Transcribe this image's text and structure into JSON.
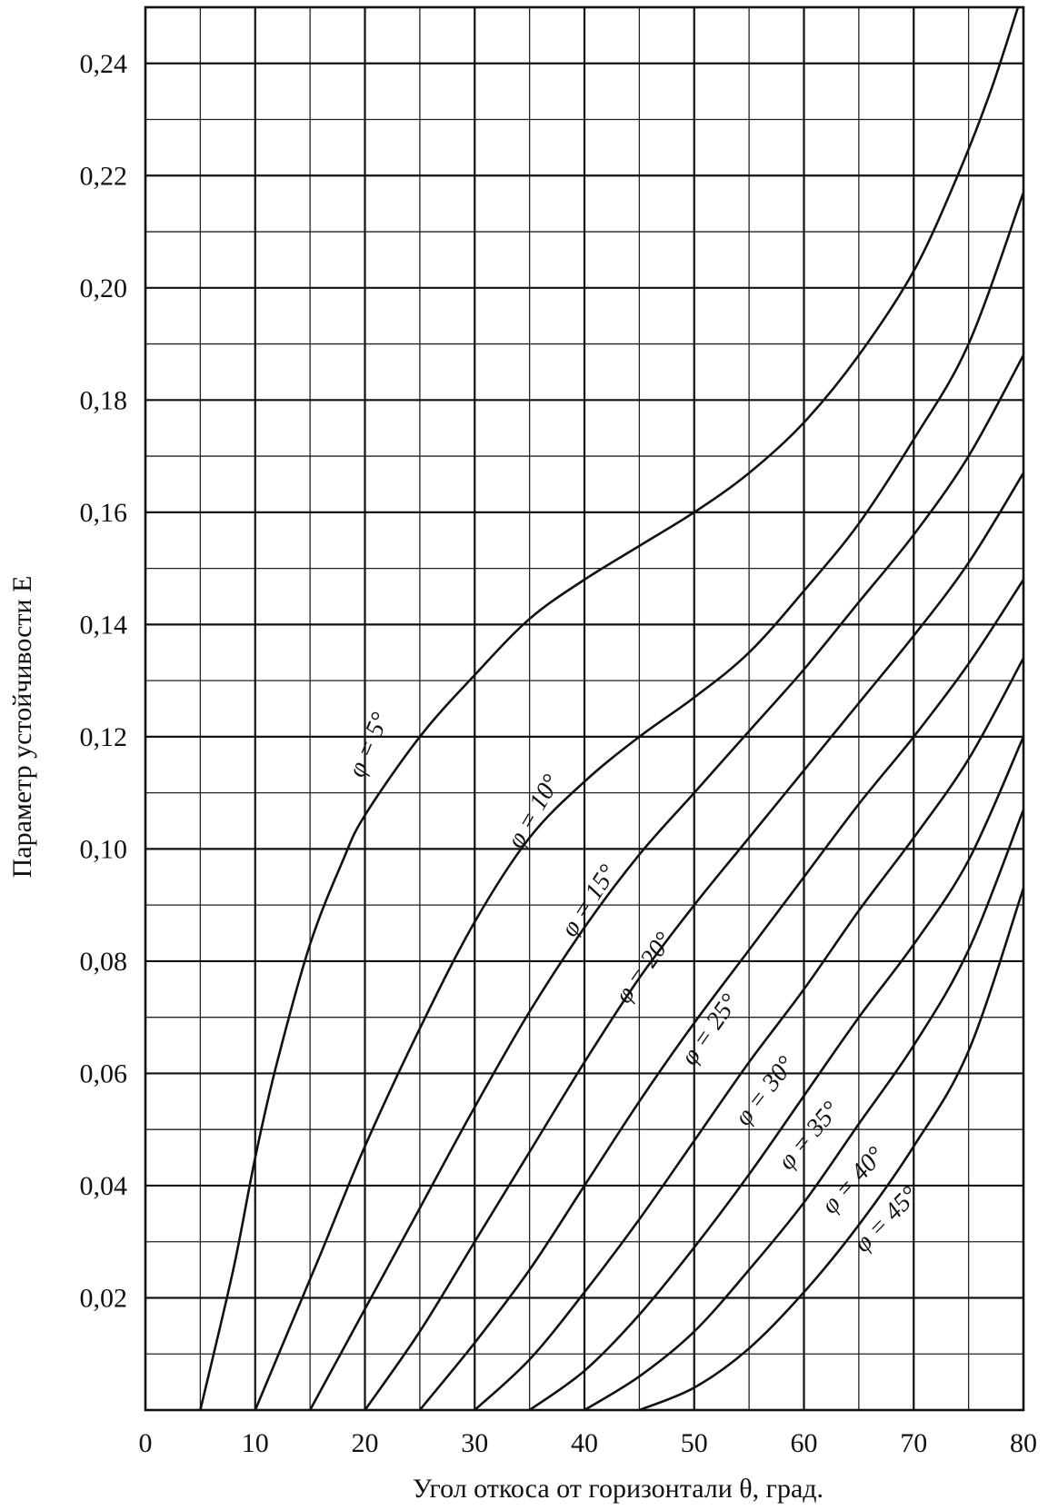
{
  "chart_data": {
    "type": "line",
    "title": "",
    "xlabel": "Угол откоса от горизонтали θ, град.",
    "ylabel": "Параметр устойчивости E",
    "xlim": [
      0,
      80
    ],
    "ylim": [
      0,
      0.25
    ],
    "x_ticks": [
      0,
      10,
      20,
      30,
      40,
      50,
      60,
      70,
      80
    ],
    "x_tick_labels": [
      "0",
      "10",
      "20",
      "30",
      "40",
      "50",
      "60",
      "70",
      "80"
    ],
    "y_ticks": [
      0.02,
      0.04,
      0.06,
      0.08,
      0.1,
      0.12,
      0.14,
      0.16,
      0.18,
      0.2,
      0.22,
      0.24
    ],
    "y_tick_labels": [
      "0,02",
      "0,04",
      "0,06",
      "0,08",
      "0,10",
      "0,12",
      "0,14",
      "0,16",
      "0,18",
      "0,20",
      "0,22",
      "0,24"
    ],
    "grid": true,
    "grid_x_step": 5,
    "grid_y_step": 0.01,
    "series": [
      {
        "name": "φ = 5°",
        "x": [
          5,
          8,
          10,
          12,
          15,
          18,
          20,
          25,
          30,
          35,
          40,
          45,
          50,
          55,
          60,
          65,
          70,
          74,
          77,
          79.5
        ],
        "y": [
          0,
          0.025,
          0.045,
          0.062,
          0.083,
          0.098,
          0.106,
          0.12,
          0.131,
          0.141,
          0.148,
          0.154,
          0.16,
          0.167,
          0.176,
          0.188,
          0.203,
          0.22,
          0.235,
          0.25
        ]
      },
      {
        "name": "φ = 10°",
        "x": [
          10,
          13,
          16,
          20,
          25,
          30,
          35,
          40,
          45,
          50,
          55,
          60,
          65,
          70,
          75,
          80
        ],
        "y": [
          0,
          0.014,
          0.028,
          0.047,
          0.068,
          0.087,
          0.102,
          0.112,
          0.12,
          0.127,
          0.135,
          0.146,
          0.158,
          0.173,
          0.19,
          0.217
        ]
      },
      {
        "name": "φ = 15°",
        "x": [
          15,
          20,
          25,
          30,
          35,
          40,
          45,
          50,
          55,
          60,
          65,
          70,
          75,
          80
        ],
        "y": [
          0,
          0.018,
          0.036,
          0.054,
          0.071,
          0.086,
          0.099,
          0.11,
          0.121,
          0.132,
          0.144,
          0.156,
          0.17,
          0.188
        ]
      },
      {
        "name": "φ = 20°",
        "x": [
          20,
          25,
          30,
          35,
          40,
          45,
          50,
          55,
          60,
          65,
          70,
          75,
          80
        ],
        "y": [
          0,
          0.014,
          0.03,
          0.046,
          0.062,
          0.077,
          0.09,
          0.102,
          0.114,
          0.126,
          0.138,
          0.151,
          0.167
        ]
      },
      {
        "name": "φ = 25°",
        "x": [
          25,
          30,
          35,
          40,
          45,
          50,
          55,
          60,
          65,
          70,
          75,
          80
        ],
        "y": [
          0,
          0.012,
          0.025,
          0.04,
          0.055,
          0.069,
          0.082,
          0.095,
          0.108,
          0.12,
          0.133,
          0.148
        ]
      },
      {
        "name": "φ = 30°",
        "x": [
          30,
          35,
          40,
          45,
          50,
          55,
          60,
          65,
          70,
          75,
          80
        ],
        "y": [
          0,
          0.009,
          0.021,
          0.034,
          0.048,
          0.062,
          0.075,
          0.089,
          0.102,
          0.116,
          0.134
        ]
      },
      {
        "name": "φ = 35°",
        "x": [
          35,
          40,
          45,
          50,
          55,
          60,
          65,
          70,
          75,
          80
        ],
        "y": [
          0,
          0.007,
          0.017,
          0.029,
          0.042,
          0.056,
          0.07,
          0.083,
          0.098,
          0.12
        ]
      },
      {
        "name": "φ = 40°",
        "x": [
          40,
          45,
          50,
          55,
          60,
          65,
          70,
          75,
          80
        ],
        "y": [
          0,
          0.006,
          0.014,
          0.025,
          0.037,
          0.051,
          0.065,
          0.082,
          0.107
        ]
      },
      {
        "name": "φ = 45°",
        "x": [
          45,
          50,
          55,
          60,
          65,
          70,
          75,
          80
        ],
        "y": [
          0,
          0.004,
          0.011,
          0.021,
          0.033,
          0.047,
          0.064,
          0.093
        ]
      }
    ]
  }
}
